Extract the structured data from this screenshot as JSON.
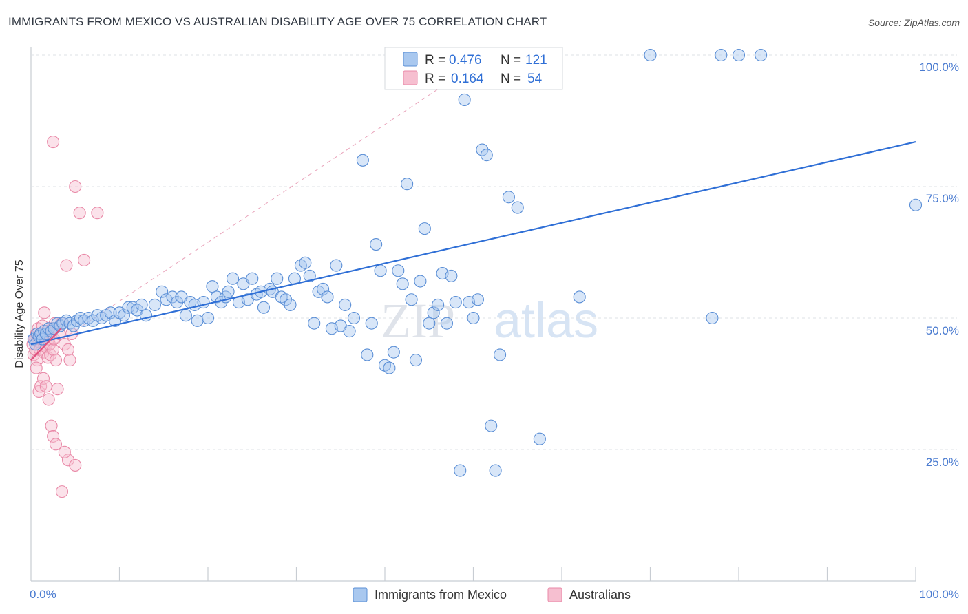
{
  "title": "IMMIGRANTS FROM MEXICO VS AUSTRALIAN DISABILITY AGE OVER 75 CORRELATION CHART",
  "source": "Source: ZipAtlas.com",
  "watermark": {
    "zip": "ZIP",
    "atlas": "atlas"
  },
  "colors": {
    "blue_fill": "#a9c8ef",
    "blue_stroke": "#5b8fd6",
    "blue_line": "#2f6fd6",
    "pink_fill": "#f6bfd0",
    "pink_stroke": "#e98aa8",
    "pink_line": "#e0507e",
    "tick_text": "#4a7bd0",
    "grid": "#dde1e6"
  },
  "legend": {
    "rows": [
      {
        "r_label": "R =",
        "r_value": "0.476",
        "n_label": "N =",
        "n_value": "121"
      },
      {
        "r_label": "R =",
        "r_value": "0.164",
        "n_label": "N =",
        "n_value": "54"
      }
    ]
  },
  "bottom_legend": {
    "series0": "Immigrants from Mexico",
    "series1": "Australians"
  },
  "chart_data": {
    "type": "scatter",
    "ylabel": "Disability Age Over 75",
    "x_tick_labels": {
      "min": "0.0%",
      "max": "100.0%"
    },
    "y_tick_labels": [
      "25.0%",
      "50.0%",
      "75.0%",
      "100.0%"
    ],
    "xlim": [
      0,
      100
    ],
    "ylim": [
      0,
      100
    ],
    "grid": "horizontal dashed",
    "legend_placement": "top-center",
    "series": [
      {
        "name": "Immigrants from Mexico",
        "r": 0.476,
        "n": 121,
        "trend": {
          "x0": 0,
          "y0": 45.0,
          "x1": 100,
          "y1": 83.5
        },
        "points": [
          [
            0.3,
            46
          ],
          [
            0.5,
            45
          ],
          [
            0.7,
            47
          ],
          [
            0.9,
            46.5
          ],
          [
            1.1,
            47
          ],
          [
            1.3,
            46
          ],
          [
            1.5,
            47.5
          ],
          [
            1.7,
            47
          ],
          [
            2.0,
            48
          ],
          [
            2.3,
            47.5
          ],
          [
            2.6,
            48
          ],
          [
            3.0,
            49
          ],
          [
            3.3,
            48.5
          ],
          [
            3.6,
            49
          ],
          [
            4.0,
            49.5
          ],
          [
            4.4,
            49
          ],
          [
            4.8,
            48.5
          ],
          [
            5.2,
            49.5
          ],
          [
            5.6,
            50
          ],
          [
            6.0,
            49.5
          ],
          [
            6.5,
            50
          ],
          [
            7.0,
            49.5
          ],
          [
            7.5,
            50.5
          ],
          [
            8.0,
            50
          ],
          [
            8.5,
            50.5
          ],
          [
            9.0,
            51
          ],
          [
            9.5,
            49.5
          ],
          [
            10.0,
            51
          ],
          [
            10.5,
            50.5
          ],
          [
            11.0,
            52
          ],
          [
            11.5,
            52
          ],
          [
            12.0,
            51.5
          ],
          [
            12.5,
            52.5
          ],
          [
            13.0,
            50.5
          ],
          [
            14.0,
            52.5
          ],
          [
            14.8,
            55
          ],
          [
            15.3,
            53.5
          ],
          [
            16.0,
            54
          ],
          [
            16.5,
            53
          ],
          [
            17.0,
            54
          ],
          [
            17.5,
            50.5
          ],
          [
            18.0,
            53
          ],
          [
            18.5,
            52.5
          ],
          [
            18.8,
            49.5
          ],
          [
            19.5,
            53
          ],
          [
            20.0,
            50
          ],
          [
            20.5,
            56
          ],
          [
            21.0,
            54
          ],
          [
            21.5,
            53
          ],
          [
            22.0,
            54
          ],
          [
            22.3,
            55
          ],
          [
            22.8,
            57.5
          ],
          [
            23.5,
            53
          ],
          [
            24.0,
            56.5
          ],
          [
            24.5,
            53.5
          ],
          [
            25.0,
            57.5
          ],
          [
            25.5,
            54.5
          ],
          [
            26.0,
            55
          ],
          [
            26.3,
            52
          ],
          [
            27.0,
            55.5
          ],
          [
            27.3,
            55
          ],
          [
            27.8,
            57.5
          ],
          [
            28.3,
            54
          ],
          [
            28.8,
            53.5
          ],
          [
            29.3,
            52.5
          ],
          [
            29.8,
            57.5
          ],
          [
            30.5,
            60
          ],
          [
            31.0,
            60.5
          ],
          [
            31.5,
            58
          ],
          [
            32.0,
            49
          ],
          [
            32.5,
            55
          ],
          [
            33.0,
            55.5
          ],
          [
            33.5,
            54
          ],
          [
            34.0,
            48
          ],
          [
            34.5,
            60
          ],
          [
            35.0,
            48.5
          ],
          [
            35.5,
            52.5
          ],
          [
            36.0,
            47.5
          ],
          [
            36.5,
            50
          ],
          [
            37.5,
            80
          ],
          [
            38.0,
            43
          ],
          [
            38.5,
            49
          ],
          [
            39.0,
            64
          ],
          [
            39.5,
            59
          ],
          [
            40.0,
            41
          ],
          [
            40.5,
            40.5
          ],
          [
            41.0,
            43.5
          ],
          [
            41.5,
            59
          ],
          [
            42.0,
            56.5
          ],
          [
            42.5,
            75.5
          ],
          [
            43.0,
            53.5
          ],
          [
            43.5,
            42
          ],
          [
            44.0,
            57
          ],
          [
            44.5,
            67
          ],
          [
            45.0,
            49
          ],
          [
            45.5,
            51
          ],
          [
            46.0,
            52.5
          ],
          [
            46.5,
            58.5
          ],
          [
            47.0,
            49
          ],
          [
            47.5,
            58
          ],
          [
            48.0,
            53
          ],
          [
            48.5,
            21
          ],
          [
            49.0,
            91.5
          ],
          [
            49.5,
            53
          ],
          [
            50.0,
            50
          ],
          [
            50.5,
            53.5
          ],
          [
            51.0,
            82
          ],
          [
            51.5,
            81
          ],
          [
            52.0,
            29.5
          ],
          [
            52.5,
            21
          ],
          [
            53.0,
            43
          ],
          [
            54.0,
            73
          ],
          [
            55.0,
            71
          ],
          [
            57.5,
            27
          ],
          [
            62.0,
            54
          ],
          [
            70.0,
            100
          ],
          [
            78.0,
            100
          ],
          [
            80.0,
            100
          ],
          [
            82.5,
            100
          ],
          [
            77.0,
            50
          ],
          [
            100.0,
            71.5
          ]
        ]
      },
      {
        "name": "Australians",
        "r": 0.164,
        "n": 54,
        "trend": {
          "x0": 0,
          "y0": 42.0,
          "x1": 3.4,
          "y1": 48.0
        },
        "dashed_trend": {
          "x0": 0,
          "y0": 42.0,
          "x1": 50,
          "y1": 98.0
        },
        "points": [
          [
            0.2,
            45
          ],
          [
            0.3,
            43
          ],
          [
            0.4,
            46
          ],
          [
            0.5,
            44
          ],
          [
            0.6,
            47
          ],
          [
            0.7,
            42
          ],
          [
            0.8,
            48
          ],
          [
            0.9,
            45.5
          ],
          [
            1.0,
            44
          ],
          [
            1.1,
            47
          ],
          [
            1.2,
            46
          ],
          [
            1.3,
            48.5
          ],
          [
            1.4,
            43.5
          ],
          [
            1.5,
            45
          ],
          [
            1.6,
            46.5
          ],
          [
            1.7,
            44.5
          ],
          [
            1.8,
            47.5
          ],
          [
            1.9,
            42.5
          ],
          [
            2.0,
            46
          ],
          [
            2.1,
            45
          ],
          [
            2.2,
            43
          ],
          [
            2.3,
            47
          ],
          [
            2.4,
            48
          ],
          [
            2.5,
            44
          ],
          [
            2.6,
            46
          ],
          [
            2.7,
            49
          ],
          [
            2.8,
            42
          ],
          [
            0.6,
            40.5
          ],
          [
            0.9,
            36
          ],
          [
            1.1,
            37
          ],
          [
            1.4,
            38.5
          ],
          [
            1.7,
            37
          ],
          [
            2.0,
            34.5
          ],
          [
            2.3,
            29.5
          ],
          [
            2.5,
            27.5
          ],
          [
            2.8,
            26
          ],
          [
            3.0,
            36.5
          ],
          [
            3.2,
            47
          ],
          [
            3.5,
            49
          ],
          [
            3.8,
            45
          ],
          [
            4.0,
            60
          ],
          [
            4.2,
            44
          ],
          [
            4.4,
            42
          ],
          [
            4.6,
            47
          ],
          [
            5.0,
            75
          ],
          [
            5.5,
            70
          ],
          [
            7.5,
            70
          ],
          [
            6.0,
            61
          ],
          [
            1.5,
            51
          ],
          [
            2.5,
            83.5
          ],
          [
            3.5,
            17
          ],
          [
            4.2,
            23
          ],
          [
            5.0,
            22
          ],
          [
            3.8,
            24.5
          ]
        ]
      }
    ]
  }
}
